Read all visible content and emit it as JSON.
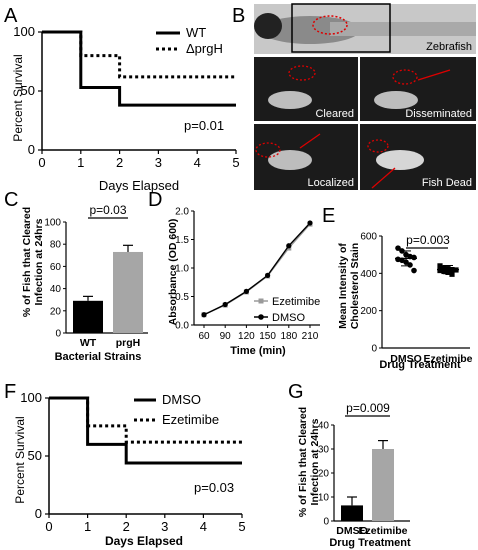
{
  "panels": {
    "A": {
      "letter": "A",
      "ylabel": "Percent Survival",
      "xlabel": "Days Elapsed",
      "legend": [
        "WT",
        "ΔprgH"
      ],
      "pvalue": "p=0.01"
    },
    "B": {
      "letter": "B",
      "top_label": "Zebrafish",
      "tiles": [
        "Cleared",
        "Disseminated",
        "Localized",
        "Fish Dead"
      ]
    },
    "C": {
      "letter": "C",
      "ylabel_1": "% of Fish that Cleared",
      "ylabel_2": "Infection at 24hrs",
      "xlabel": "Bacterial Strains",
      "pvalue": "p=0.03"
    },
    "D": {
      "letter": "D",
      "ylabel": "Absorbance (OD 600)",
      "xlabel": "Time (min)",
      "legend": [
        "Ezetimibe",
        "DMSO"
      ]
    },
    "E": {
      "letter": "E",
      "ylabel_1": "Mean Intensity of",
      "ylabel_2": "Cholesterol Stain",
      "xlabel": "Drug Treatment",
      "pvalue": "p=0.003"
    },
    "F": {
      "letter": "F",
      "ylabel": "Percent Survival",
      "xlabel": "Days Elapsed",
      "legend": [
        "DMSO",
        "Ezetimibe"
      ],
      "pvalue": "p=0.03"
    },
    "G": {
      "letter": "G",
      "ylabel_1": "% of Fish that Cleared",
      "ylabel_2": "Infection at 24hrs",
      "xlabel": "Drug Treatment",
      "pvalue": "p=0.009"
    }
  },
  "chart_data": [
    {
      "panel": "A",
      "type": "line",
      "ylabel": "Percent Survival",
      "xlabel": "Days Elapsed",
      "xlim": [
        0,
        5
      ],
      "ylim": [
        0,
        100
      ],
      "xticks": [
        0,
        1,
        2,
        3,
        4,
        5
      ],
      "yticks": [
        0,
        50,
        100
      ],
      "series": [
        {
          "name": "WT",
          "style": "solid",
          "x": [
            0,
            1,
            1,
            2,
            2,
            5
          ],
          "y": [
            100,
            100,
            53,
            53,
            38,
            38
          ]
        },
        {
          "name": "ΔprgH",
          "style": "dotted",
          "x": [
            0,
            1,
            1,
            2,
            2,
            5
          ],
          "y": [
            100,
            100,
            80,
            80,
            62,
            62
          ]
        }
      ]
    },
    {
      "panel": "C",
      "type": "bar",
      "categories": [
        "WT",
        "prgH"
      ],
      "values": [
        29,
        73
      ],
      "errors": [
        4,
        6
      ],
      "colors": [
        "#000000",
        "#a6a6a6"
      ],
      "ylim": [
        0,
        100
      ],
      "yticks": [
        0,
        20,
        40,
        60,
        80,
        100
      ],
      "xlabel": "Bacterial Strains"
    },
    {
      "panel": "D",
      "type": "line",
      "xlabel": "Time (min)",
      "ylabel": "Absorbance (OD 600)",
      "categories": [
        60,
        90,
        120,
        150,
        180,
        210
      ],
      "ylim": [
        0,
        2.0
      ],
      "yticks": [
        0.0,
        0.5,
        1.0,
        1.5,
        2.0
      ],
      "series": [
        {
          "name": "Ezetimibe",
          "color": "#9a9a9a",
          "values": [
            0.18,
            0.35,
            0.58,
            0.86,
            1.35,
            1.77
          ]
        },
        {
          "name": "DMSO",
          "color": "#000000",
          "values": [
            0.18,
            0.36,
            0.59,
            0.87,
            1.39,
            1.79
          ]
        }
      ]
    },
    {
      "panel": "E",
      "type": "scatter",
      "categories": [
        "DMSO",
        "Ezetimibe"
      ],
      "ylim": [
        0,
        600
      ],
      "yticks": [
        0,
        200,
        400,
        600
      ],
      "xlabel": "Drug Treatment",
      "means": [
        480,
        420
      ],
      "sd": [
        40,
        22
      ],
      "points": [
        [
          535,
          520,
          500,
          490,
          485,
          475,
          470,
          460,
          445,
          415
        ],
        [
          440,
          430,
          425,
          420,
          418,
          415,
          410,
          405,
          395
        ]
      ]
    },
    {
      "panel": "F",
      "type": "line",
      "ylabel": "Percent Survival",
      "xlabel": "Days Elapsed",
      "xlim": [
        0,
        5
      ],
      "ylim": [
        0,
        100
      ],
      "xticks": [
        0,
        1,
        2,
        3,
        4,
        5
      ],
      "yticks": [
        0,
        50,
        100
      ],
      "series": [
        {
          "name": "DMSO",
          "style": "solid",
          "x": [
            0,
            1,
            1,
            2,
            2,
            5
          ],
          "y": [
            100,
            100,
            60,
            60,
            44,
            44
          ]
        },
        {
          "name": "Ezetimibe",
          "style": "dotted",
          "x": [
            0,
            1,
            1,
            2,
            2,
            5
          ],
          "y": [
            100,
            100,
            76,
            76,
            62,
            62
          ]
        }
      ]
    },
    {
      "panel": "G",
      "type": "bar",
      "categories": [
        "DMSO",
        "Ezetimibe"
      ],
      "values": [
        6.5,
        30
      ],
      "errors": [
        3.5,
        3.5
      ],
      "colors": [
        "#000000",
        "#a6a6a6"
      ],
      "ylim": [
        0,
        40
      ],
      "yticks": [
        0,
        10,
        20,
        30,
        40
      ],
      "xlabel": "Drug Treatment"
    }
  ]
}
